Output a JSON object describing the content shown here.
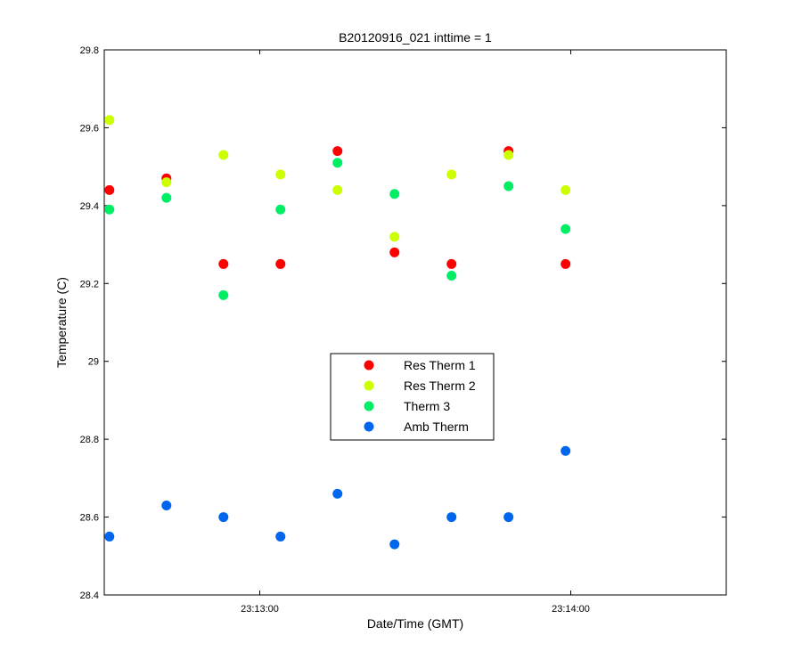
{
  "chart_data": {
    "type": "scatter",
    "title": "B20120916_021 inttime = 1",
    "xlabel": "Date/Time (GMT)",
    "ylabel": "Temperature (C)",
    "xlim": [
      "23:12:30",
      "23:14:30"
    ],
    "ylim": [
      28.4,
      29.8
    ],
    "x_tick_labels": [
      "23:13:00",
      "23:14:00"
    ],
    "y_tick_labels": [
      "28.4",
      "28.6",
      "28.8",
      "29",
      "29.2",
      "29.4",
      "29.6",
      "29.8"
    ],
    "grid": false,
    "legend_position": "center",
    "x": [
      "23:12:31",
      "23:12:42",
      "23:12:53",
      "23:13:04",
      "23:13:15",
      "23:13:26",
      "23:13:37",
      "23:13:48",
      "23:13:59"
    ],
    "series": [
      {
        "name": "Res Therm 1",
        "color": "#ff0000",
        "values": [
          29.44,
          29.47,
          29.25,
          29.25,
          29.54,
          29.28,
          29.25,
          29.54,
          29.25
        ]
      },
      {
        "name": "Res Therm 2",
        "color": "#ccff00",
        "values": [
          29.62,
          29.46,
          29.53,
          29.48,
          29.44,
          29.32,
          29.48,
          29.53,
          29.44
        ]
      },
      {
        "name": "Therm 3",
        "color": "#00ee66",
        "values": [
          29.39,
          29.42,
          29.17,
          29.39,
          29.51,
          29.43,
          29.22,
          29.45,
          29.34
        ]
      },
      {
        "name": "Amb Therm",
        "color": "#0066ee",
        "values": [
          28.55,
          28.63,
          28.6,
          28.55,
          28.66,
          28.53,
          28.6,
          28.6,
          28.77
        ]
      }
    ]
  }
}
